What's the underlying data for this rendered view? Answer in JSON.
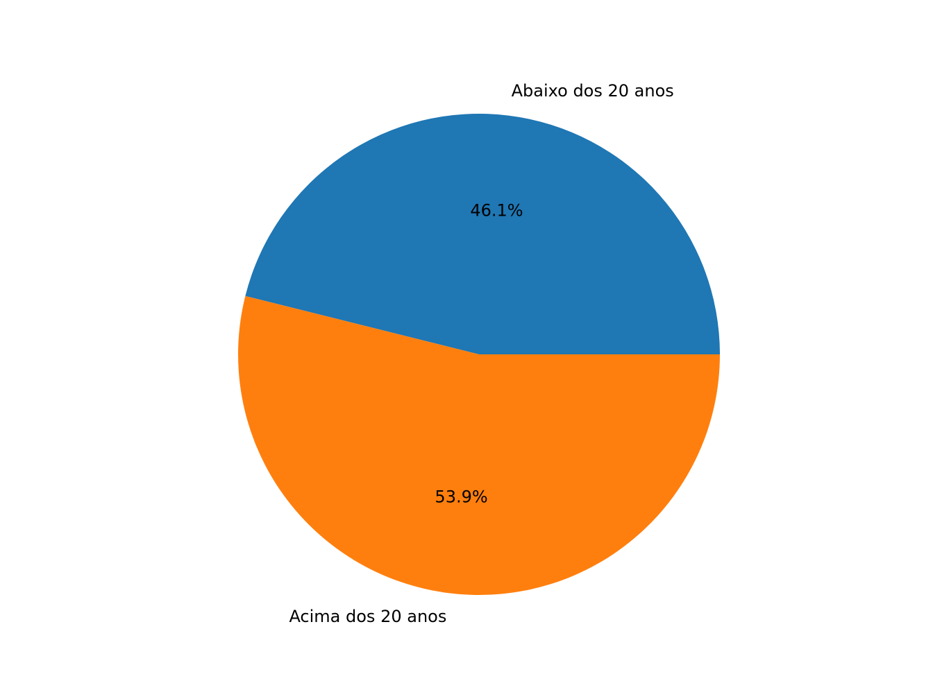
{
  "chart_data": {
    "type": "pie",
    "categories": [
      "Abaixo dos 20 anos",
      "Acima dos 20 anos"
    ],
    "values": [
      46.1,
      53.9
    ],
    "percent_labels": [
      "46.1%",
      "53.9%"
    ],
    "colors": [
      "#1f77b4",
      "#ff7f0e"
    ],
    "start_angle_deg": 0,
    "direction": "counterclockwise",
    "title": "",
    "legend": "none"
  }
}
